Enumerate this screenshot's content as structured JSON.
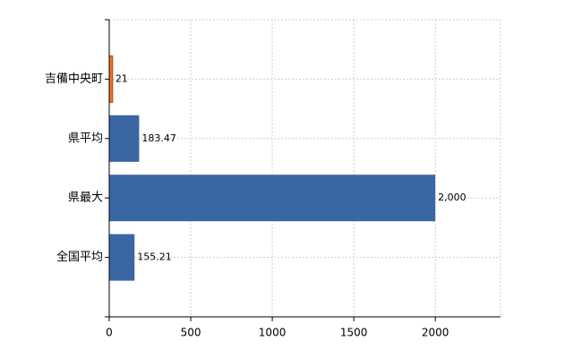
{
  "chart_data": {
    "type": "bar",
    "orientation": "horizontal",
    "categories": [
      "吉備中央町",
      "県平均",
      "県最大",
      "全国平均"
    ],
    "values": [
      21,
      183.47,
      2000,
      155.21
    ],
    "value_labels": [
      "21",
      "183.47",
      "2,000",
      "155.21"
    ],
    "colors": [
      "#e8762b",
      "#3a67a3",
      "#3a67a3",
      "#3a67a3"
    ],
    "xlim": [
      0,
      2400
    ],
    "xticks": [
      0,
      500,
      1000,
      1500,
      2000
    ],
    "grid": true
  }
}
